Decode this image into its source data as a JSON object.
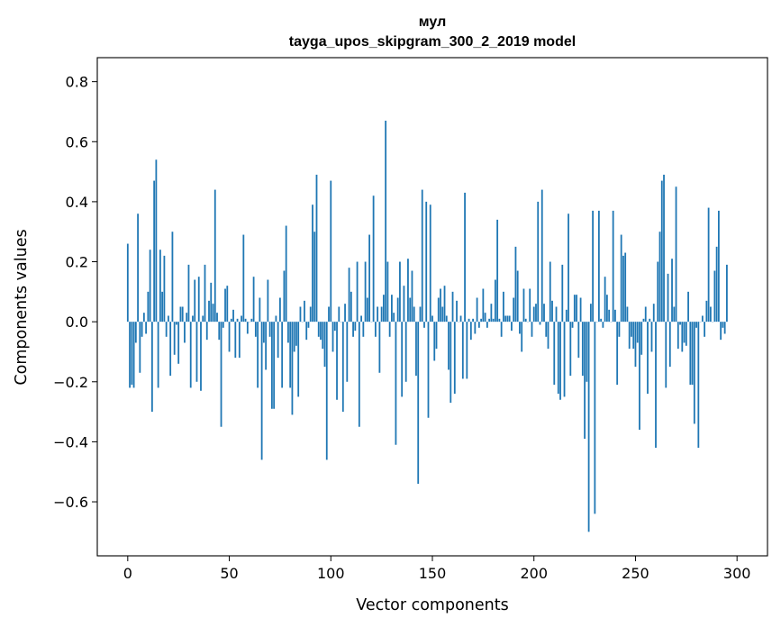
{
  "chart_data": {
    "type": "bar",
    "title": "мул",
    "subtitle": "tayga_upos_skipgram_300_2_2019 model",
    "xlabel": "Vector components",
    "ylabel": "Components values",
    "xlim": [
      -15,
      315
    ],
    "ylim": [
      -0.78,
      0.88
    ],
    "xticks": [
      0,
      50,
      100,
      150,
      200,
      250,
      300
    ],
    "xtick_labels": [
      "0",
      "50",
      "100",
      "150",
      "200",
      "250",
      "300"
    ],
    "yticks": [
      -0.6,
      -0.4,
      -0.2,
      0.0,
      0.2,
      0.4,
      0.6,
      0.8
    ],
    "ytick_labels": [
      "−0.6",
      "−0.4",
      "−0.2",
      "0.0",
      "0.2",
      "0.4",
      "0.6",
      "0.8"
    ],
    "grid": false,
    "bar_color": "#1f77b4",
    "x_start": 0,
    "values": [
      0.26,
      -0.22,
      -0.21,
      -0.22,
      -0.07,
      0.36,
      -0.17,
      -0.05,
      0.03,
      -0.04,
      0.1,
      0.24,
      -0.3,
      0.47,
      0.54,
      -0.22,
      0.24,
      0.1,
      0.22,
      -0.05,
      0.02,
      -0.18,
      0.3,
      -0.11,
      -0.01,
      -0.14,
      0.05,
      0.05,
      -0.07,
      0.03,
      0.19,
      -0.22,
      0.02,
      0.14,
      -0.2,
      0.15,
      -0.23,
      0.02,
      0.19,
      -0.06,
      0.07,
      0.13,
      0.06,
      0.44,
      0.03,
      -0.06,
      -0.35,
      -0.02,
      0.11,
      0.12,
      -0.1,
      0.01,
      0.04,
      -0.12,
      0.01,
      -0.12,
      0.02,
      0.29,
      0.01,
      -0.04,
      0.0,
      0.01,
      0.15,
      -0.05,
      -0.22,
      0.08,
      -0.46,
      -0.07,
      -0.16,
      0.14,
      -0.05,
      -0.29,
      -0.29,
      0.02,
      -0.12,
      0.08,
      -0.22,
      0.17,
      0.32,
      -0.07,
      -0.22,
      -0.31,
      -0.1,
      -0.08,
      -0.25,
      0.05,
      0.0,
      0.07,
      -0.06,
      -0.02,
      0.05,
      0.39,
      0.3,
      0.49,
      -0.05,
      -0.06,
      -0.09,
      -0.15,
      -0.46,
      0.05,
      0.47,
      -0.1,
      -0.03,
      -0.26,
      0.05,
      0.0,
      -0.3,
      0.06,
      -0.2,
      0.18,
      0.1,
      -0.05,
      -0.03,
      0.2,
      -0.35,
      0.02,
      -0.05,
      0.2,
      0.08,
      0.29,
      0.0,
      0.42,
      -0.05,
      0.05,
      -0.17,
      0.05,
      0.09,
      0.67,
      0.2,
      -0.05,
      0.09,
      0.03,
      -0.41,
      0.08,
      0.2,
      -0.25,
      0.12,
      -0.2,
      0.21,
      0.08,
      0.17,
      0.05,
      -0.18,
      -0.54,
      0.05,
      0.44,
      -0.02,
      0.4,
      -0.32,
      0.39,
      0.02,
      -0.13,
      -0.09,
      0.08,
      0.11,
      0.05,
      0.12,
      0.02,
      -0.16,
      -0.27,
      0.1,
      -0.24,
      0.07,
      0.0,
      0.02,
      -0.19,
      0.43,
      -0.19,
      0.01,
      -0.06,
      0.01,
      -0.04,
      0.08,
      -0.02,
      0.01,
      0.11,
      0.03,
      -0.02,
      0.01,
      0.06,
      0.01,
      0.14,
      0.34,
      0.01,
      -0.05,
      0.1,
      0.02,
      0.02,
      0.02,
      -0.03,
      0.08,
      0.25,
      0.17,
      -0.04,
      -0.1,
      0.11,
      0.01,
      0.0,
      0.11,
      -0.05,
      0.05,
      0.06,
      0.4,
      -0.01,
      0.44,
      0.06,
      -0.05,
      -0.09,
      0.2,
      0.07,
      -0.21,
      0.05,
      -0.24,
      -0.26,
      0.19,
      -0.25,
      0.04,
      0.36,
      -0.18,
      -0.02,
      0.09,
      0.09,
      -0.12,
      0.08,
      -0.18,
      -0.39,
      -0.2,
      -0.7,
      0.06,
      0.37,
      -0.64,
      0.0,
      0.37,
      0.01,
      -0.02,
      0.15,
      0.09,
      0.04,
      0.0,
      0.37,
      0.04,
      -0.21,
      -0.05,
      0.29,
      0.22,
      0.23,
      0.05,
      -0.09,
      -0.05,
      -0.09,
      -0.15,
      -0.07,
      -0.36,
      -0.11,
      0.01,
      0.05,
      -0.24,
      0.01,
      -0.1,
      0.06,
      -0.42,
      0.2,
      0.3,
      0.47,
      0.49,
      -0.22,
      0.16,
      -0.15,
      0.21,
      0.05,
      0.45,
      -0.09,
      -0.01,
      -0.1,
      -0.07,
      -0.08,
      0.1,
      -0.21,
      -0.21,
      -0.34,
      -0.02,
      -0.42,
      0.0,
      0.02,
      -0.05,
      0.07,
      0.38,
      0.05,
      0.0,
      0.17,
      0.25,
      0.37,
      -0.06,
      -0.02,
      -0.04,
      0.19
    ]
  }
}
